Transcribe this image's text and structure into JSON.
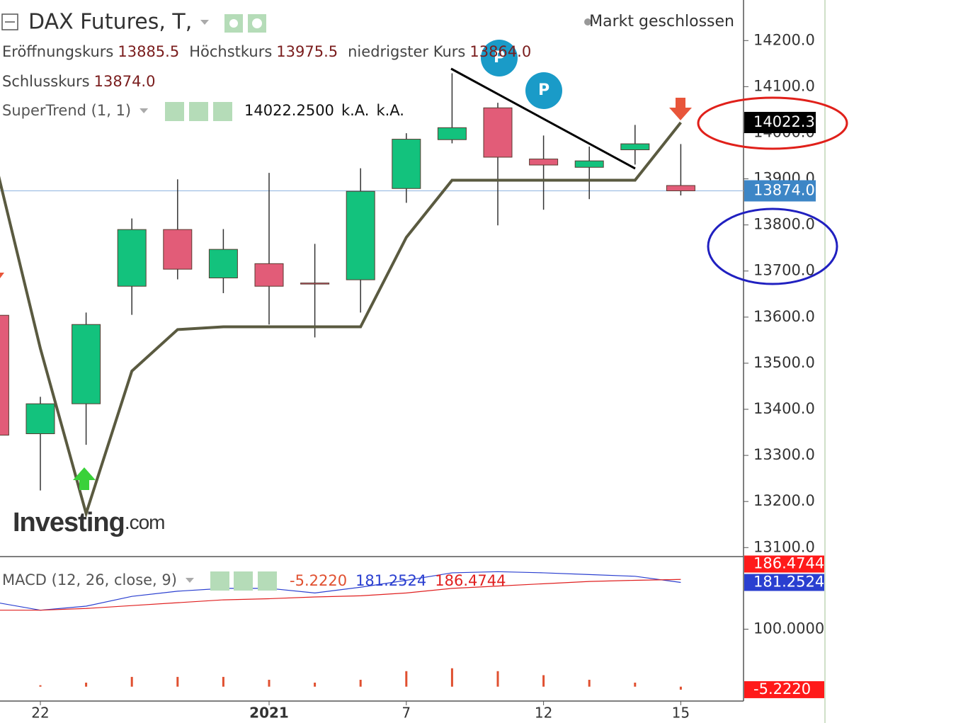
{
  "chart_data": [
    {
      "type": "candlestick",
      "title": "DAX Futures, T,",
      "status": "Markt geschlossen",
      "categories": [
        null,
        "22",
        null,
        null,
        null,
        null,
        "2021",
        null,
        null,
        "7",
        null,
        null,
        "12",
        null,
        null,
        "15"
      ],
      "open": [
        13604,
        13347,
        13412,
        13667,
        13790,
        13685,
        13716,
        13674,
        13681,
        13879,
        13985,
        14054,
        13943,
        13925,
        13963,
        13885.5
      ],
      "high": [
        13604,
        13427,
        13610,
        13814,
        13899,
        13791,
        13913,
        13759,
        13923,
        13999,
        14129,
        14065,
        13994,
        13970,
        14017,
        13975.5
      ],
      "low": [
        13344,
        13224,
        13323,
        13605,
        13682,
        13652,
        13584,
        13556,
        13610,
        13848,
        13977,
        13799,
        13833,
        13856,
        13931,
        13864
      ],
      "close": [
        13344,
        13412,
        13584,
        13790,
        13704,
        13747,
        13667,
        13673,
        13873,
        13986,
        14011,
        13947,
        13930,
        13939,
        13976,
        13874
      ],
      "up_color": "#13c27d",
      "down_color": "#e25c78",
      "ohlc_legend": [
        {
          "name": "Eröffnungskurs",
          "label": "13885.5"
        },
        {
          "name": "Höchstkurs",
          "label": "13975.5"
        },
        {
          "name": "niedrigster Kurs",
          "label": "13864.0"
        },
        {
          "name": "Schlusskurs",
          "label": "13874.0"
        }
      ],
      "indicator": {
        "name": "SuperTrend (1, 1)",
        "color": "#5a5a40",
        "values": [
          13942,
          13532,
          13174,
          13483,
          13573,
          13579,
          13579,
          13579,
          13579,
          13773,
          13897,
          13897,
          13897,
          13897,
          13897,
          14022.25
        ],
        "legend_labels": [
          "14022.2500",
          "k.A.",
          "k.A."
        ]
      },
      "price_labels": [
        {
          "value": 14022.25,
          "label": "14022.3",
          "color": "#000000"
        },
        {
          "value": 13874,
          "label": "13874.0",
          "color": "#3d86c6"
        }
      ],
      "ylim": [
        13082,
        14288
      ],
      "yticks": [
        {
          "value": 13100,
          "label": "13100.0"
        },
        {
          "value": 13200,
          "label": "13200.0"
        },
        {
          "value": 13300,
          "label": "13300.0"
        },
        {
          "value": 13400,
          "label": "13400.0"
        },
        {
          "value": 13500,
          "label": "13500.0"
        },
        {
          "value": 13600,
          "label": "13600.0"
        },
        {
          "value": 13700,
          "label": "13700.0"
        },
        {
          "value": 13800,
          "label": "13800.0"
        },
        {
          "value": 13900,
          "label": "13900.0"
        },
        {
          "value": 14000,
          "label": "14000.0"
        },
        {
          "value": 14100,
          "label": "14100.0"
        },
        {
          "value": 14200,
          "label": "14200.0"
        }
      ],
      "watermark": [
        "Investing",
        ".com"
      ],
      "annotations": [
        "P",
        "P"
      ]
    },
    {
      "type": "macd",
      "name": "MACD (12, 26, close, 9)",
      "histogram": {
        "color": "#e05030",
        "values": [
          null,
          2.5,
          7,
          17,
          17,
          17,
          12,
          7,
          12,
          27,
          32,
          27,
          20,
          12,
          7,
          -5.222
        ],
        "last_label": "-5.2220"
      },
      "series": [
        {
          "color": "#2a3fd0",
          "values": [
            147,
            133,
            140,
            157,
            166,
            171,
            171,
            163,
            173,
            185,
            198,
            200,
            198,
            195,
            192,
            181.2524
          ],
          "last_label": "181.2524"
        },
        {
          "color": "#e02020",
          "values": [
            133,
            133,
            136,
            141,
            146,
            151,
            153,
            156,
            158,
            163,
            171,
            175,
            179,
            183,
            185,
            186.4744
          ],
          "last_label": "186.4744"
        }
      ],
      "ylim": [
        -25,
        225
      ],
      "yticks": [
        {
          "value": 100,
          "label": "100.0000"
        }
      ]
    }
  ]
}
